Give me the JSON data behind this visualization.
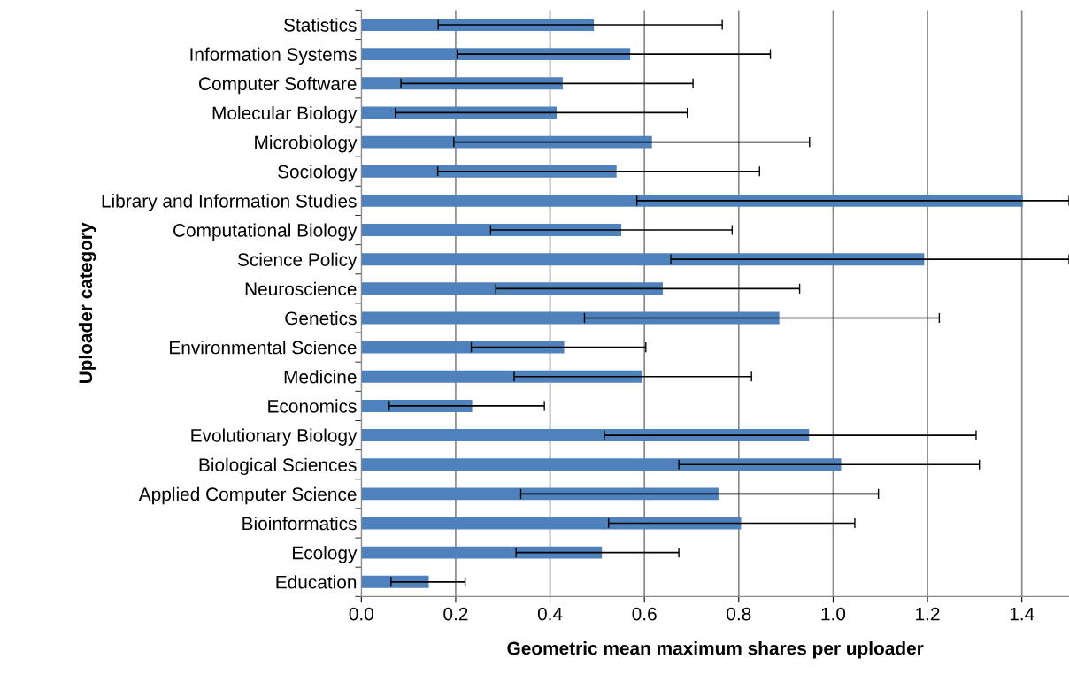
{
  "chart_data": {
    "type": "bar",
    "orientation": "horizontal",
    "xlabel": "Geometric mean maximum shares per uploader",
    "ylabel": "Uploader category",
    "categories": [
      "Statistics",
      "Information Systems",
      "Computer Software",
      "Molecular Biology",
      "Microbiology",
      "Sociology",
      "Library and Information Studies",
      "Computational Biology",
      "Science Policy",
      "Neuroscience",
      "Genetics",
      "Environmental Science",
      "Medicine",
      "Economics",
      "Evolutionary Biology",
      "Biological Sciences",
      "Applied Computer Science",
      "Bioinformatics",
      "Ecology",
      "Education"
    ],
    "values": [
      0.493,
      0.57,
      0.427,
      0.414,
      0.616,
      0.541,
      1.402,
      0.551,
      1.193,
      0.639,
      0.886,
      0.43,
      0.596,
      0.235,
      0.949,
      1.017,
      0.757,
      0.805,
      0.51,
      0.143
    ],
    "errors": [
      [
        0.163,
        0.765
      ],
      [
        0.203,
        0.867
      ],
      [
        0.084,
        0.703
      ],
      [
        0.072,
        0.691
      ],
      [
        0.196,
        0.95
      ],
      [
        0.162,
        0.844
      ],
      [
        0.584,
        1.5
      ],
      [
        0.274,
        0.786
      ],
      [
        0.656,
        1.5
      ],
      [
        0.285,
        0.929
      ],
      [
        0.473,
        1.225
      ],
      [
        0.233,
        0.603
      ],
      [
        0.324,
        0.827
      ],
      [
        0.059,
        0.388
      ],
      [
        0.515,
        1.303
      ],
      [
        0.673,
        1.31
      ],
      [
        0.338,
        1.096
      ],
      [
        0.524,
        1.046
      ],
      [
        0.328,
        0.673
      ],
      [
        0.063,
        0.22
      ]
    ],
    "color": "#4f81bd",
    "xlim": [
      0,
      1.5
    ],
    "xticks": [
      {
        "value": 0,
        "label": "0.0"
      },
      {
        "value": 0.2,
        "label": "0.2"
      },
      {
        "value": 0.4,
        "label": "0.4"
      },
      {
        "value": 0.6,
        "label": "0.6"
      },
      {
        "value": 0.8,
        "label": "0.8"
      },
      {
        "value": 1.0,
        "label": "1.0"
      },
      {
        "value": 1.2,
        "label": "1.2"
      },
      {
        "value": 1.4,
        "label": "1.4"
      }
    ],
    "grid": "x",
    "legend": false
  }
}
